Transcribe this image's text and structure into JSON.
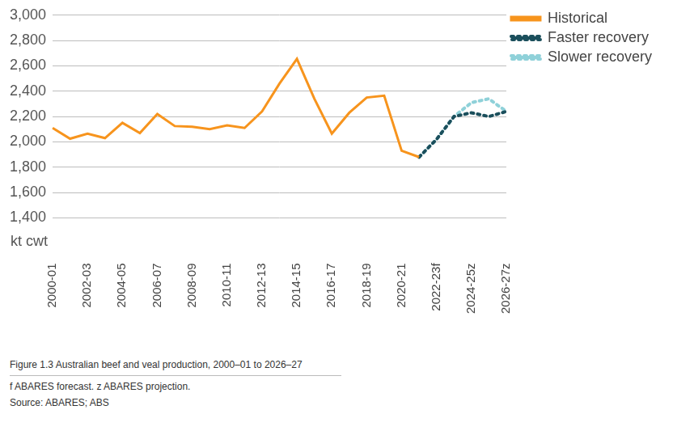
{
  "chart_data": {
    "type": "line",
    "title": "Figure 1.3 Australian beef and veal production, 2000–01 to 2026–27",
    "notes": [
      "f ABARES forecast. z ABARES projection.",
      "Source: ABARES; ABS"
    ],
    "y_label": "kt cwt",
    "categories": [
      "2000-01",
      null,
      "2002-03",
      null,
      "2004-05",
      null,
      "2006-07",
      null,
      "2008-09",
      null,
      "2010-11",
      null,
      "2012-13",
      null,
      "2014-15",
      null,
      "2016-17",
      null,
      "2018-19",
      null,
      "2020-21",
      null,
      "2022-23f",
      null,
      "2024-25z",
      null,
      "2026-27z"
    ],
    "series": [
      {
        "name": "Historical",
        "color": "#f7941d",
        "line_style": "solid",
        "values": [
          2110,
          2025,
          2065,
          2030,
          2150,
          2070,
          2220,
          2125,
          2120,
          2100,
          2130,
          2110,
          2240,
          2460,
          2655,
          2340,
          2065,
          2230,
          2350,
          2365,
          1930,
          1880,
          null,
          null,
          null,
          null,
          null
        ]
      },
      {
        "name": "Faster recovery",
        "color": "#1b4f5c",
        "line_style": "dotted",
        "values": [
          null,
          null,
          null,
          null,
          null,
          null,
          null,
          null,
          null,
          null,
          null,
          null,
          null,
          null,
          null,
          null,
          null,
          null,
          null,
          null,
          null,
          1880,
          2020,
          2200,
          2230,
          2200,
          2240
        ]
      },
      {
        "name": "Slower recovery",
        "color": "#8fd1d9",
        "line_style": "dotted",
        "values": [
          null,
          null,
          null,
          null,
          null,
          null,
          null,
          null,
          null,
          null,
          null,
          null,
          null,
          null,
          null,
          null,
          null,
          null,
          null,
          null,
          null,
          1880,
          2020,
          2200,
          2310,
          2340,
          2240
        ]
      }
    ],
    "ylim": [
      1400,
      3000
    ],
    "yticks": [
      {
        "value": 1400,
        "label": "1,400"
      },
      {
        "value": 1600,
        "label": "1,600"
      },
      {
        "value": 1800,
        "label": "1,800"
      },
      {
        "value": 2000,
        "label": "2,000"
      },
      {
        "value": 2200,
        "label": "2,200"
      },
      {
        "value": 2400,
        "label": "2,400"
      },
      {
        "value": 2600,
        "label": "2,600"
      },
      {
        "value": 2800,
        "label": "2,800"
      },
      {
        "value": 3000,
        "label": "3,000"
      }
    ],
    "grid": true,
    "legend": "top right"
  }
}
